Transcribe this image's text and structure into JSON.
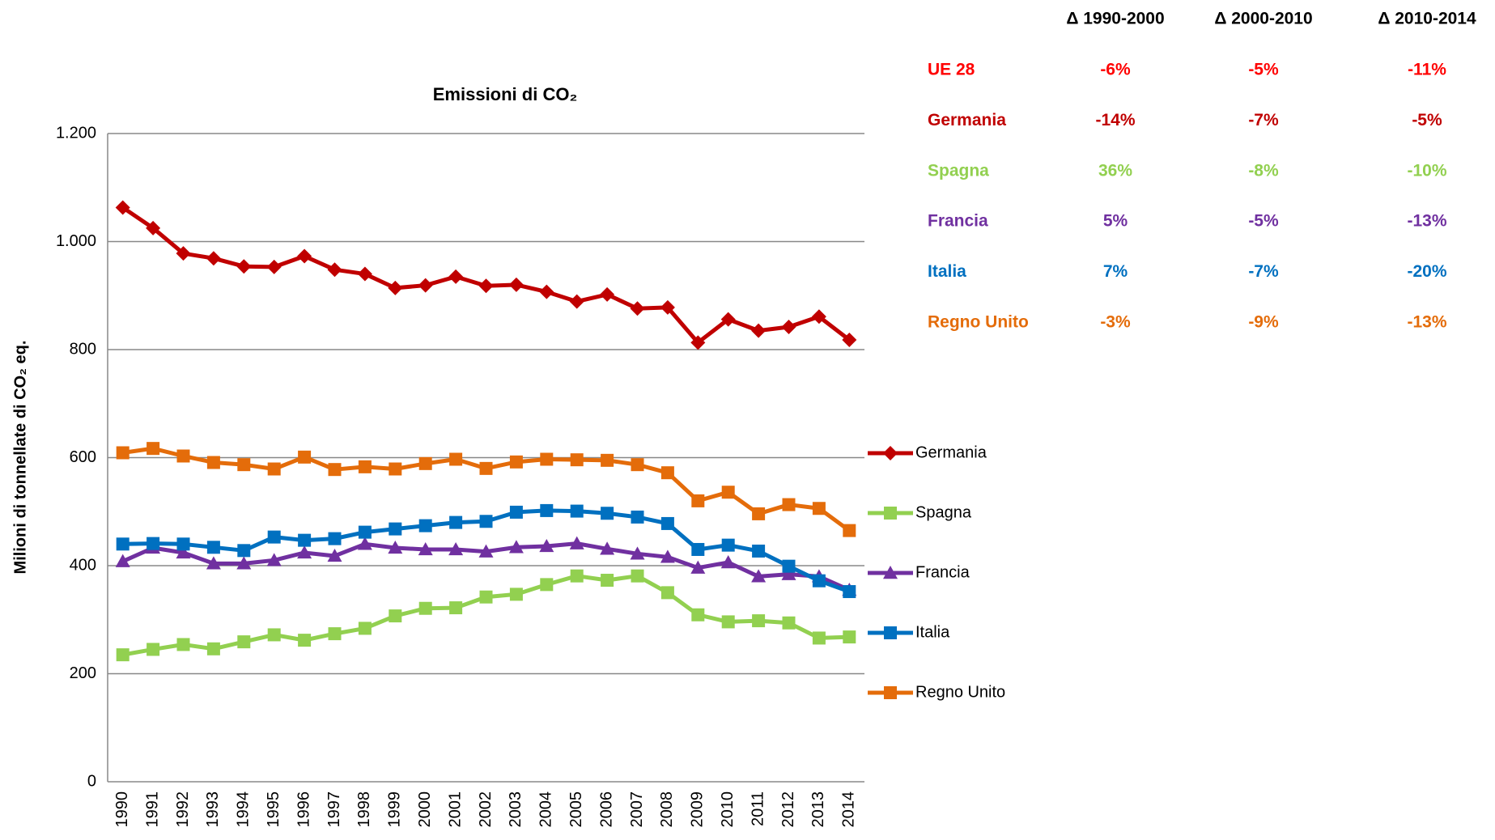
{
  "chart_data": {
    "type": "line",
    "title": "Emissioni di CO₂",
    "y_label": "Milioni di tonnellate di CO₂ eq.",
    "categories": [
      "1990",
      "1991",
      "1992",
      "1993",
      "1994",
      "1995",
      "1996",
      "1997",
      "1998",
      "1999",
      "2000",
      "2001",
      "2002",
      "2003",
      "2004",
      "2005",
      "2006",
      "2007",
      "2008",
      "2009",
      "2010",
      "2011",
      "2012",
      "2013",
      "2014"
    ],
    "ylim": [
      0,
      1200
    ],
    "yticks": [
      0,
      200,
      400,
      600,
      800,
      {
        "value": 1000,
        "label": "1.000"
      },
      {
        "value": 1200,
        "label": "1.200"
      }
    ],
    "grid": true,
    "series": [
      {
        "name": "Germania",
        "color": "#c00000",
        "marker": "diamond",
        "values": [
          1063,
          1025,
          978,
          969,
          954,
          953,
          973,
          948,
          940,
          914,
          919,
          935,
          918,
          920,
          907,
          889,
          902,
          876,
          878,
          813,
          856,
          835,
          842,
          861,
          818
        ]
      },
      {
        "name": "Spagna",
        "color": "#92d050",
        "marker": "square",
        "values": [
          235,
          245,
          254,
          246,
          259,
          272,
          262,
          274,
          284,
          307,
          321,
          322,
          342,
          347,
          365,
          381,
          373,
          381,
          350,
          309,
          296,
          298,
          294,
          266,
          268
        ]
      },
      {
        "name": "Francia",
        "color": "#7030a0",
        "marker": "triangle",
        "values": [
          408,
          433,
          424,
          404,
          404,
          410,
          424,
          418,
          440,
          433,
          430,
          430,
          426,
          434,
          436,
          441,
          431,
          422,
          416,
          396,
          406,
          380,
          384,
          380,
          355
        ]
      },
      {
        "name": "Italia",
        "color": "#0070c0",
        "marker": "square",
        "values": [
          440,
          441,
          440,
          434,
          428,
          453,
          447,
          450,
          462,
          468,
          474,
          480,
          482,
          499,
          502,
          501,
          497,
          490,
          478,
          430,
          438,
          427,
          399,
          372,
          352
        ]
      },
      {
        "name": "Regno Unito",
        "color": "#e46c0a",
        "marker": "square",
        "values": [
          609,
          617,
          603,
          591,
          587,
          579,
          601,
          578,
          583,
          579,
          589,
          597,
          580,
          592,
          597,
          596,
          595,
          587,
          572,
          520,
          536,
          496,
          513,
          506,
          465
        ]
      }
    ]
  },
  "table": {
    "headers": [
      "Δ 1990-2000",
      "Δ 2000-2010",
      "Δ 2010-2014"
    ],
    "rows": [
      {
        "name": "UE 28",
        "color": "#ff0000",
        "values": [
          "-6%",
          "-5%",
          "-11%"
        ]
      },
      {
        "name": "Germania",
        "color": "#c00000",
        "values": [
          "-14%",
          "-7%",
          "-5%"
        ]
      },
      {
        "name": "Spagna",
        "color": "#92d050",
        "values": [
          "36%",
          "-8%",
          "-10%"
        ]
      },
      {
        "name": "Francia",
        "color": "#7030a0",
        "values": [
          "5%",
          "-5%",
          "-13%"
        ]
      },
      {
        "name": "Italia",
        "color": "#0070c0",
        "values": [
          "7%",
          "-7%",
          "-20%"
        ]
      },
      {
        "name": "Regno Unito",
        "color": "#e46c0a",
        "values": [
          "-3%",
          "-9%",
          "-13%"
        ]
      }
    ]
  }
}
